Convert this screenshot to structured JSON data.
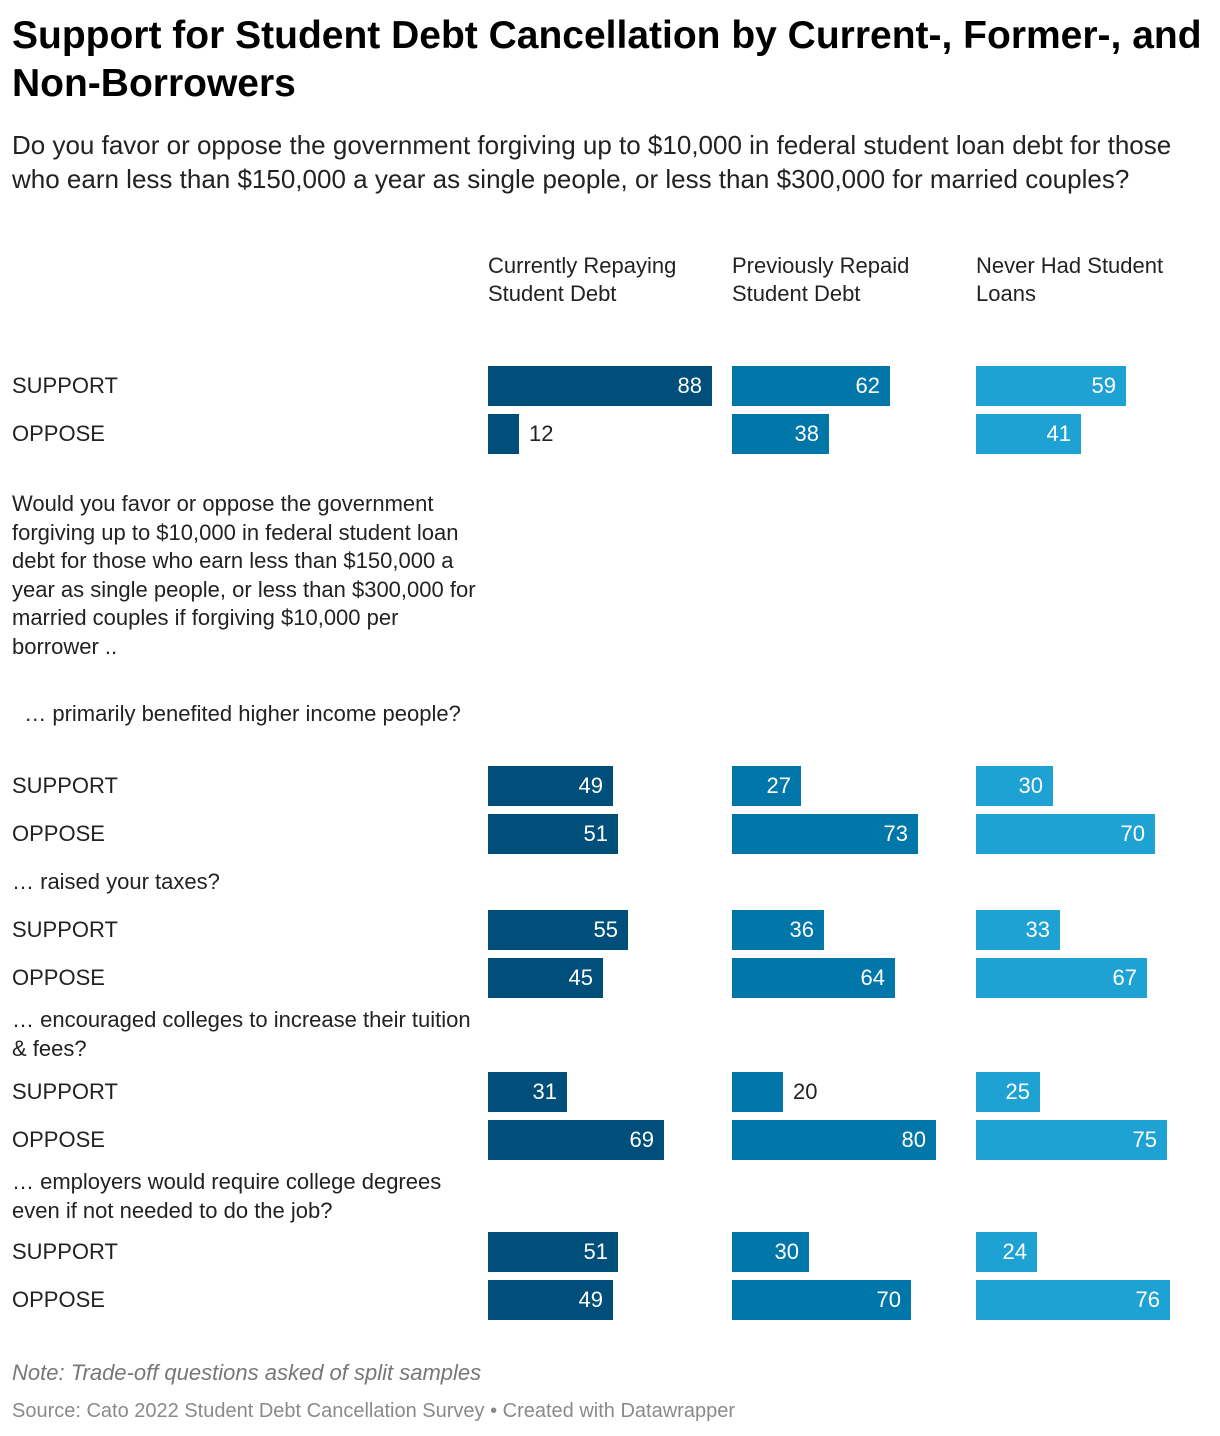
{
  "title": "Support for Student Debt Cancellation by Current-, Former-, and Non-Borrowers",
  "subtitle": "Do you favor or oppose the government forgiving up to $10,000 in federal student loan debt for those who earn less than $150,000 a year as single people, or less than $300,000 for married couples?",
  "colors": {
    "currently_repaying": "#004f7a",
    "previously_repaid": "#0077a8",
    "never_had": "#1ea2d3"
  },
  "chart_data": {
    "type": "bar",
    "orientation": "horizontal",
    "columns": [
      "Currently Repaying Student Debt",
      "Previously Repaid Student Debt",
      "Never Had Student Loans"
    ],
    "xlim": [
      0,
      100
    ],
    "intro_text": "Would you favor or oppose the government forgiving up to $10,000 in federal student loan debt for those who earn less than $150,000 a year as single people, or less than $300,000 for married couples if forgiving $10,000 per borrower ..",
    "groups": [
      {
        "question": "",
        "rows": [
          {
            "label": "SUPPORT",
            "values": [
              88,
              62,
              59
            ]
          },
          {
            "label": "OPPOSE",
            "values": [
              12,
              38,
              41
            ]
          }
        ]
      },
      {
        "question": "  … primarily benefited higher income people?",
        "rows": [
          {
            "label": "SUPPORT",
            "values": [
              49,
              27,
              30
            ]
          },
          {
            "label": "OPPOSE",
            "values": [
              51,
              73,
              70
            ]
          }
        ]
      },
      {
        "question": "… raised your taxes?",
        "rows": [
          {
            "label": "SUPPORT",
            "values": [
              55,
              36,
              33
            ]
          },
          {
            "label": "OPPOSE",
            "values": [
              45,
              64,
              67
            ]
          }
        ]
      },
      {
        "question": "… encouraged colleges to increase their tuition & fees?",
        "rows": [
          {
            "label": "SUPPORT",
            "values": [
              31,
              20,
              25
            ]
          },
          {
            "label": "OPPOSE",
            "values": [
              69,
              80,
              75
            ]
          }
        ]
      },
      {
        "question": "… employers would require college degrees even if not needed to do the job?",
        "rows": [
          {
            "label": "SUPPORT",
            "values": [
              51,
              30,
              24
            ]
          },
          {
            "label": "OPPOSE",
            "values": [
              49,
              70,
              76
            ]
          }
        ]
      }
    ]
  },
  "footer": {
    "note": "Note: Trade-off questions asked of split samples",
    "source": "Source: Cato 2022 Student Debt Cancellation Survey",
    "separator": " • ",
    "credit": "Created with Datawrapper"
  }
}
